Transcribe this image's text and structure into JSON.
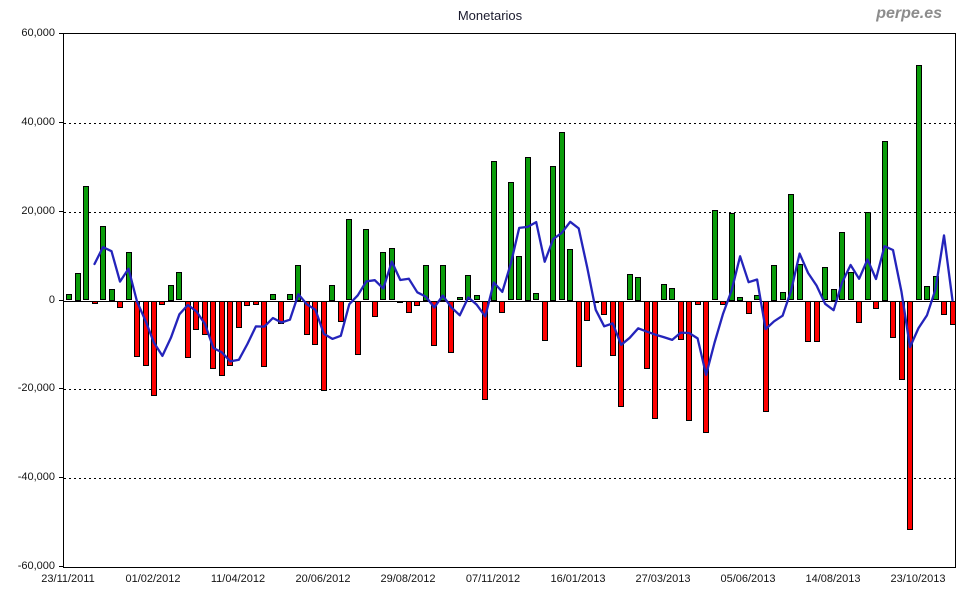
{
  "header": {
    "title": "Monetarios",
    "watermark": "perpe.es"
  },
  "chart_data": {
    "type": "bar",
    "title": "Monetarios",
    "frequency": "weekly",
    "start_date": "23/11/2011",
    "x_tick_labels": [
      "23/11/2011",
      "01/02/2012",
      "11/04/2012",
      "20/06/2012",
      "29/08/2012",
      "07/11/2012",
      "16/01/2013",
      "27/03/2013",
      "05/06/2013",
      "14/08/2013",
      "23/10/2013"
    ],
    "x_ticks_every_n_weeks": 10,
    "y_tick_labels": [
      "60,000",
      "40,000",
      "20,000",
      "0",
      "-20,000",
      "-40,000",
      "-60,000"
    ],
    "ylim": [
      -60000,
      60000
    ],
    "y_tick_step": 20000,
    "grid": "horizontal dashed lines every 20000, solid line at 0",
    "legend_position": "none",
    "values": [
      1500,
      6300,
      25800,
      -700,
      16700,
      2600,
      -1600,
      10900,
      -12800,
      -14800,
      -21400,
      -900,
      3500,
      6400,
      -13000,
      -6700,
      -7700,
      -15400,
      -16900,
      -14800,
      -6200,
      -1300,
      -1000,
      -15000,
      1500,
      -5300,
      1500,
      8000,
      -7700,
      -10100,
      -20300,
      3500,
      -4900,
      18400,
      -12300,
      16000,
      -3800,
      10900,
      11900,
      -500,
      -2700,
      -1300,
      8000,
      -10300,
      8000,
      -11800,
      800,
      5800,
      1300,
      -22300,
      31400,
      -2700,
      26700,
      10000,
      32300,
      1600,
      -9000,
      30400,
      37900,
      11600,
      -15000,
      -4700,
      -300,
      -3200,
      -12400,
      -24000,
      6000,
      5400,
      -15400,
      -26700,
      3700,
      2900,
      -8800,
      -27100,
      -1100,
      -29900,
      20300,
      -1100,
      19700,
      900,
      -3000,
      1300,
      -25000,
      8000,
      2000,
      23900,
      8300,
      -9400,
      -9400,
      7500,
      2600,
      15500,
      6400,
      -5000,
      20000,
      -2000,
      35900,
      -8400,
      -17800,
      -51700,
      53000,
      3300,
      5500,
      -3200,
      -5400
    ],
    "line_overlay": {
      "name": "4-week moving average",
      "derivation": "moving_average_window_4",
      "color": "#2424bb"
    },
    "colors": {
      "positive_bar": "#0a9c0a",
      "negative_bar": "#fe0000",
      "bar_outline": "#000000",
      "line": "#2424bb",
      "watermark": "#8c8c8c",
      "axis_text": "#141414"
    }
  }
}
